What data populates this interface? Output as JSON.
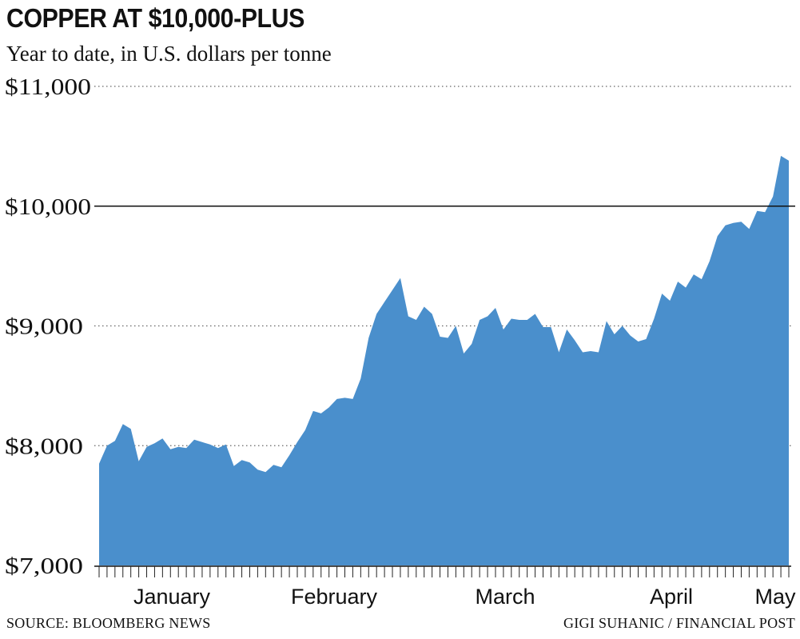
{
  "header": {
    "title": "COPPER AT $10,000-PLUS",
    "subtitle": "Year to date, in U.S. dollars per tonne"
  },
  "footer": {
    "source": "SOURCE: BLOOMBERG NEWS",
    "credit": "GIGI SUHANIC / FINANCIAL POST"
  },
  "colors": {
    "area": "#4a8fcc",
    "text": "#111111",
    "grid": "#666666"
  },
  "chart_data": {
    "type": "area",
    "title": "COPPER AT $10,000-PLUS",
    "subtitle": "Year to date, in U.S. dollars per tonne",
    "ylim": [
      7000,
      11000
    ],
    "yticks": [
      7000,
      8000,
      9000,
      10000,
      11000
    ],
    "ytick_labels": [
      "$7,000",
      "$8,000",
      "$9,000",
      "$10,000",
      "$11,000"
    ],
    "highlight_line": 10000,
    "month_labels": [
      "January",
      "February",
      "March",
      "April",
      "May"
    ],
    "x_unit": "trading day",
    "series": [
      {
        "values": [
          7850,
          8000,
          8040,
          8180,
          8140,
          7870,
          7990,
          8020,
          8060,
          7970,
          7990,
          7980,
          8050,
          8030,
          8010,
          7980,
          8010,
          7830,
          7880,
          7860,
          7800,
          7780,
          7840,
          7820,
          7920,
          8030,
          8130,
          8290,
          8270,
          8320,
          8390,
          8400,
          8390,
          8560,
          8900,
          9100,
          9200,
          9300,
          9400,
          9080,
          9050,
          9160,
          9100,
          8910,
          8900,
          9000,
          8770,
          8850,
          9050,
          9080,
          9150,
          8970,
          9060,
          9050,
          9050,
          9100,
          8990,
          8990,
          8780,
          8970,
          8880,
          8780,
          8790,
          8780,
          9040,
          8930,
          9000,
          8920,
          8870,
          8890,
          9060,
          9270,
          9210,
          9370,
          9320,
          9430,
          9390,
          9540,
          9750,
          9840,
          9860,
          9870,
          9810,
          9960,
          9950,
          10080,
          10420,
          10380
        ]
      }
    ]
  }
}
